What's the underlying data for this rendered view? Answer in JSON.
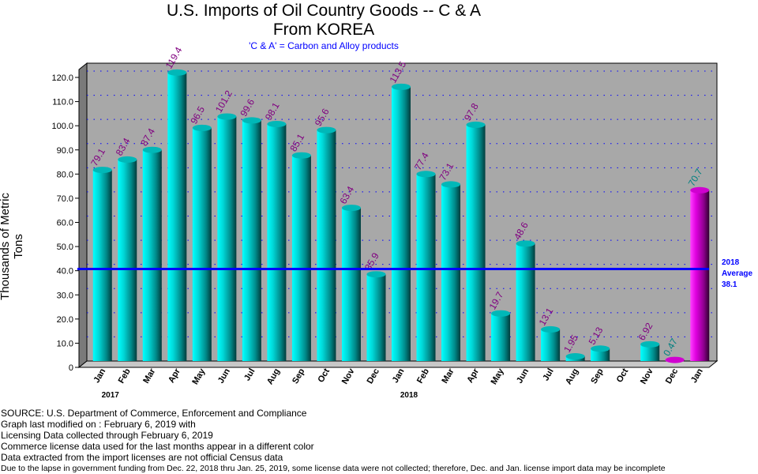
{
  "chart_data": {
    "type": "bar",
    "title": "U.S. Imports of Oil Country Goods -- C & A",
    "subtitle": "From KOREA",
    "note": "'C & A' = Carbon and Alloy products",
    "ylabel": "Thousands of Metric Tons",
    "ylim": [
      0,
      120
    ],
    "yticks": [
      "0",
      "10.0",
      "20.0",
      "30.0",
      "40.0",
      "50.0",
      "60.0",
      "70.0",
      "80.0",
      "90.0",
      "100.0",
      "110.0",
      "120.0"
    ],
    "grid": true,
    "categories": [
      "Jan",
      "Feb",
      "Mar",
      "Apr",
      "May",
      "Jun",
      "Jul",
      "Aug",
      "Sep",
      "Oct",
      "Nov",
      "Dec",
      "Jan",
      "Feb",
      "Mar",
      "Apr",
      "May",
      "Jun",
      "Jul",
      "Aug",
      "Sep",
      "Oct",
      "Nov",
      "Dec",
      "Jan"
    ],
    "year_labels": [
      {
        "index": 0,
        "label": "2017"
      },
      {
        "index": 12,
        "label": "2018"
      }
    ],
    "values": [
      79.1,
      83.4,
      87.4,
      119.4,
      96.5,
      101.2,
      99.6,
      98.1,
      85.1,
      95.6,
      63.4,
      35.9,
      113.5,
      77.4,
      73.1,
      97.8,
      19.7,
      48.6,
      13.1,
      1.95,
      5.13,
      0,
      6.92,
      0.47,
      70.7
    ],
    "labels": [
      "79.1",
      "83.4",
      "87.4",
      "119.4",
      "96.5",
      "101.2",
      "99.6",
      "98.1",
      "85.1",
      "95.6",
      "63.4",
      "35.9",
      "113.5",
      "77.4",
      "73.1",
      "97.8",
      "19.7",
      "48.6",
      "13.1",
      "1.95",
      "5.13",
      "",
      "6.92",
      "0.47",
      "70.7"
    ],
    "highlight": [
      false,
      false,
      false,
      false,
      false,
      false,
      false,
      false,
      false,
      false,
      false,
      false,
      false,
      false,
      false,
      false,
      false,
      false,
      false,
      false,
      false,
      false,
      false,
      true,
      true
    ],
    "average": {
      "value": 38.1,
      "label_lines": [
        "2018",
        "Average",
        "38.1"
      ]
    },
    "colors": {
      "bar": "#00c8c8",
      "highlight": "#d000d0",
      "label": "#800080",
      "label_highlight": "#008080",
      "average": "#0000ff",
      "plot_bg": "#a8a8a8",
      "grid": "#0000ff"
    }
  },
  "footer": [
    "SOURCE: U.S. Department of Commerce, Enforcement and Compliance",
    "Graph last modified on : February 6, 2019   with",
    "Licensing Data collected through February 6, 2019",
    "Commerce license data used for the last months appear in a different color",
    "Data extracted from the import licenses are not official Census data",
    "Due to the lapse in government funding from Dec. 22, 2018 thru Jan. 25, 2019, some license data were not collected; therefore, Dec. and Jan. license import data may be incomplete"
  ]
}
